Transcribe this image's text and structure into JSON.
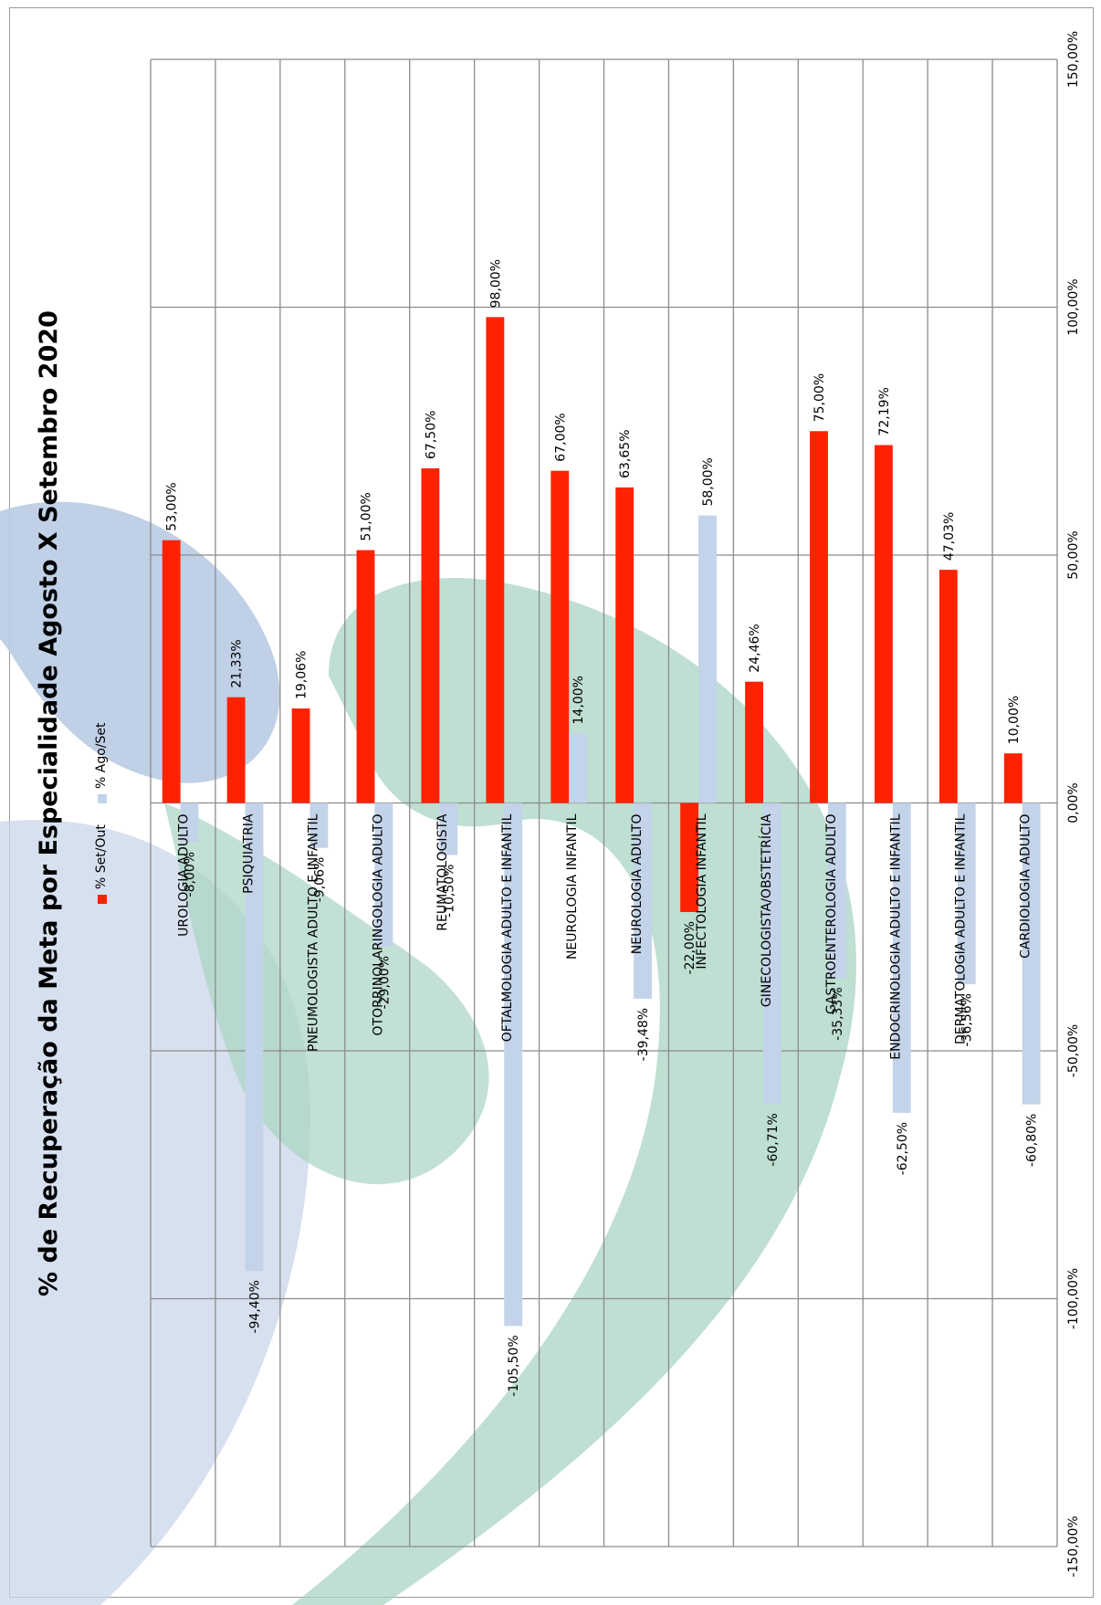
{
  "chart_data": {
    "type": "bar",
    "title": "% de Recuperação da Meta por Especialidade Agosto X Setembro 2020",
    "categories": [
      "UROLOGIA ADULTO",
      "PSIQUIATRIA",
      "PNEUMOLOGISTA ADULTO E INFANTIL",
      "OTORRINOLARINGOLOGIA ADULTO",
      "REUMATOLOGISTA",
      "OFTALMOLOGIA ADULTO E INFANTIL",
      "NEUROLOGIA INFANTIL",
      "NEUROLOGIA ADULTO",
      "INFECTOLOGIA INFANTIL",
      "GINECOLOGISTA/OBSTETRÍCIA",
      "GASTROENTEROLOGIA ADULTO",
      "ENDOCRINOLOGIA ADULTO E INFANTIL",
      "DERMATOLOGIA ADULTO E INFANTIL",
      "CARDIOLOGIA ADULTO"
    ],
    "series": [
      {
        "name": "% Set/Out",
        "color": "#ff2200",
        "values": [
          53.0,
          21.33,
          19.06,
          51.0,
          67.5,
          98.0,
          67.0,
          63.65,
          -22.0,
          24.46,
          75.0,
          72.19,
          47.03,
          10.0
        ],
        "labels": [
          "53,00%",
          "21,33%",
          "19,06%",
          "51,00%",
          "67,50%",
          "98,00%",
          "67,00%",
          "63,65%",
          "-22,00%",
          "24,46%",
          "75,00%",
          "72,19%",
          "47,03%",
          "10,00%"
        ]
      },
      {
        "name": "% Ago/Set",
        "color": "#c3d3e9",
        "values": [
          -8.0,
          -94.4,
          -9.06,
          -29.0,
          -10.5,
          -105.5,
          14.0,
          -39.48,
          58.0,
          -60.71,
          -35.33,
          -62.5,
          -36.56,
          -60.8
        ],
        "labels": [
          "-8,00%",
          "-94,40%",
          "-9,06%",
          "-29,00%",
          "-10,50%",
          "-105,50%",
          "14,00%",
          "-39,48%",
          "58,00%",
          "-60,71%",
          "-35,33%",
          "-62,50%",
          "-36,56%",
          "-60,80%"
        ]
      }
    ],
    "value_axis": {
      "min": -150,
      "max": 150,
      "ticks": [
        150,
        100,
        50,
        0,
        -50,
        -100,
        -150
      ],
      "tick_labels": [
        "150,00%",
        "100,00%",
        "50,00%",
        "0,00%",
        "-50,00%",
        "-100,00%",
        "-150,00%"
      ]
    },
    "orientation": "rotated-90-counterclockwise",
    "grid": true,
    "legend_position": "top"
  }
}
